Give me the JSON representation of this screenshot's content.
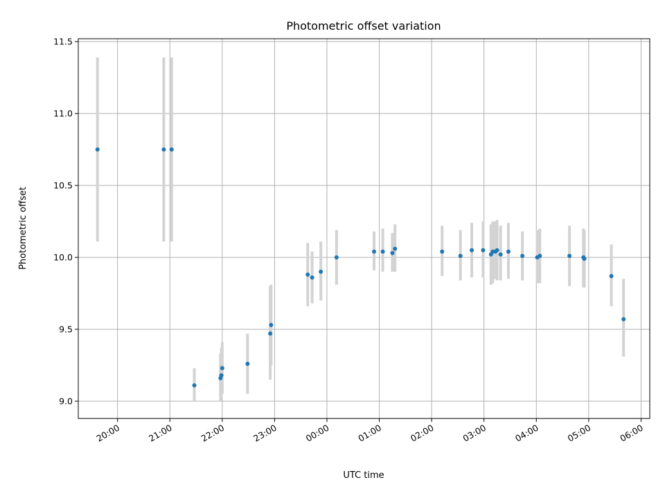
{
  "chart_data": {
    "type": "scatter",
    "title": "Photometric offset variation",
    "xlabel": "UTC time",
    "ylabel": "Photometric offset",
    "x_axis_type": "time",
    "x_start": "19:15",
    "x_end": "06:10",
    "ylim": [
      8.88,
      11.52
    ],
    "x_ticks": [
      "20:00",
      "21:00",
      "22:00",
      "23:00",
      "00:00",
      "01:00",
      "02:00",
      "03:00",
      "04:00",
      "05:00",
      "06:00"
    ],
    "y_ticks": [
      9.0,
      9.5,
      10.0,
      10.5,
      11.0,
      11.5
    ],
    "y_tick_labels": [
      "9.0",
      "9.5",
      "10.0",
      "10.5",
      "11.0",
      "11.5"
    ],
    "grid": true,
    "colors": {
      "points": "#1f77b4",
      "error_bars": "#d3d3d3"
    },
    "series": [
      {
        "points": [
          {
            "x": "19:37",
            "y": 10.75,
            "lo": 10.11,
            "hi": 11.39
          },
          {
            "x": "20:53",
            "y": 10.75,
            "lo": 10.11,
            "hi": 11.39
          },
          {
            "x": "21:02",
            "y": 10.75,
            "lo": 10.11,
            "hi": 11.39
          },
          {
            "x": "21:28",
            "y": 9.11,
            "lo": 9.0,
            "hi": 9.23
          },
          {
            "x": "21:58",
            "y": 9.16,
            "lo": 9.0,
            "hi": 9.33
          },
          {
            "x": "21:59",
            "y": 9.18,
            "lo": 9.02,
            "hi": 9.37
          },
          {
            "x": "22:00",
            "y": 9.23,
            "lo": 9.05,
            "hi": 9.41
          },
          {
            "x": "22:29",
            "y": 9.26,
            "lo": 9.05,
            "hi": 9.47
          },
          {
            "x": "22:55",
            "y": 9.47,
            "lo": 9.15,
            "hi": 9.8
          },
          {
            "x": "22:56",
            "y": 9.53,
            "lo": 9.25,
            "hi": 9.81
          },
          {
            "x": "23:38",
            "y": 9.88,
            "lo": 9.66,
            "hi": 10.1
          },
          {
            "x": "23:43",
            "y": 9.86,
            "lo": 9.68,
            "hi": 10.04
          },
          {
            "x": "23:53",
            "y": 9.9,
            "lo": 9.7,
            "hi": 10.11
          },
          {
            "x": "00:11",
            "y": 10.0,
            "lo": 9.81,
            "hi": 10.19
          },
          {
            "x": "00:54",
            "y": 10.04,
            "lo": 9.91,
            "hi": 10.18
          },
          {
            "x": "01:04",
            "y": 10.04,
            "lo": 9.9,
            "hi": 10.2
          },
          {
            "x": "01:15",
            "y": 10.03,
            "lo": 9.9,
            "hi": 10.17
          },
          {
            "x": "01:18",
            "y": 10.06,
            "lo": 9.9,
            "hi": 10.23
          },
          {
            "x": "02:12",
            "y": 10.04,
            "lo": 9.87,
            "hi": 10.22
          },
          {
            "x": "02:33",
            "y": 10.01,
            "lo": 9.84,
            "hi": 10.19
          },
          {
            "x": "02:46",
            "y": 10.05,
            "lo": 9.86,
            "hi": 10.24
          },
          {
            "x": "02:59",
            "y": 10.05,
            "lo": 9.86,
            "hi": 10.25
          },
          {
            "x": "03:08",
            "y": 10.02,
            "lo": 9.81,
            "hi": 10.23
          },
          {
            "x": "03:10",
            "y": 10.04,
            "lo": 9.82,
            "hi": 10.25
          },
          {
            "x": "03:13",
            "y": 10.04,
            "lo": 9.85,
            "hi": 10.25
          },
          {
            "x": "03:15",
            "y": 10.05,
            "lo": 9.84,
            "hi": 10.26
          },
          {
            "x": "03:19",
            "y": 10.02,
            "lo": 9.84,
            "hi": 10.22
          },
          {
            "x": "03:28",
            "y": 10.04,
            "lo": 9.85,
            "hi": 10.24
          },
          {
            "x": "03:44",
            "y": 10.01,
            "lo": 9.84,
            "hi": 10.18
          },
          {
            "x": "04:01",
            "y": 10.0,
            "lo": 9.82,
            "hi": 10.19
          },
          {
            "x": "04:04",
            "y": 10.01,
            "lo": 9.82,
            "hi": 10.2
          },
          {
            "x": "04:38",
            "y": 10.01,
            "lo": 9.8,
            "hi": 10.22
          },
          {
            "x": "04:54",
            "y": 10.0,
            "lo": 9.79,
            "hi": 10.2
          },
          {
            "x": "04:55",
            "y": 9.99,
            "lo": 9.79,
            "hi": 10.19
          },
          {
            "x": "05:26",
            "y": 9.87,
            "lo": 9.66,
            "hi": 10.09
          },
          {
            "x": "05:40",
            "y": 9.57,
            "lo": 9.31,
            "hi": 9.85
          }
        ]
      }
    ]
  }
}
